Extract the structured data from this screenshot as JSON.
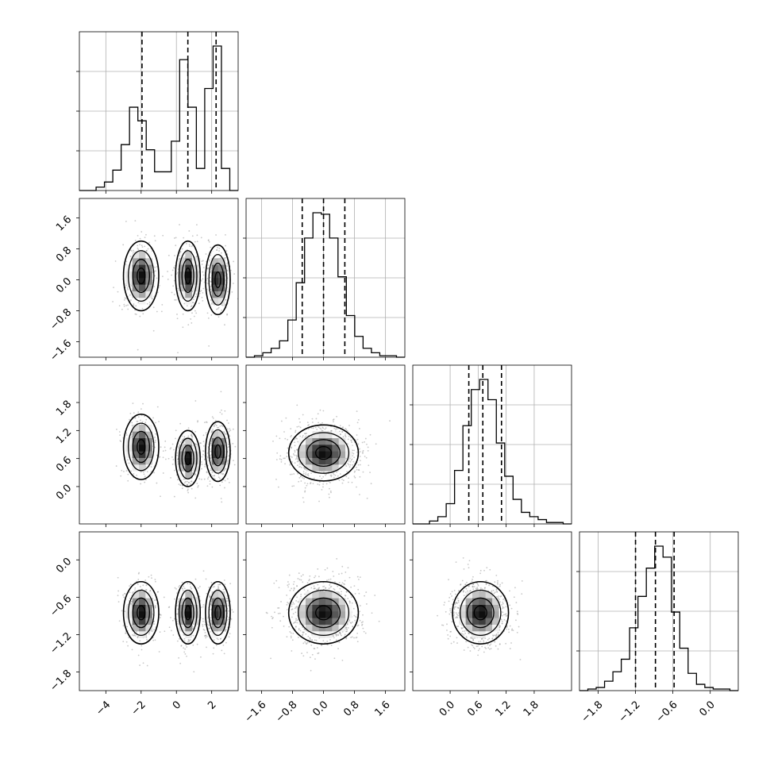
{
  "chart_data": {
    "type": "corner",
    "title": "",
    "grid": true,
    "colors": {
      "line": "#000000",
      "grid": "#b0b0b0",
      "scatter": "#9a9a9a",
      "background": "#ffffff"
    },
    "params": [
      {
        "range": [
          -5.5,
          3.5
        ],
        "xticks": [
          "-4",
          "-2",
          "0",
          "2"
        ],
        "quantiles": [
          -1.95,
          0.65,
          2.25
        ]
      },
      {
        "range": [
          -2.0,
          2.1
        ],
        "xticks": [
          "-1.6",
          "-0.8",
          "0.0",
          "0.8",
          "1.6"
        ],
        "quantiles": [
          -0.55,
          0.0,
          0.55
        ]
      },
      {
        "range": [
          -0.8,
          2.6
        ],
        "xticks": [
          "0.0",
          "0.6",
          "1.2",
          "1.8"
        ],
        "quantiles": [
          0.4,
          0.7,
          1.1
        ]
      },
      {
        "range": [
          -2.1,
          0.45
        ],
        "xticks": [
          "-1.8",
          "-1.2",
          "-0.6",
          "0.0"
        ],
        "quantiles": [
          -1.2,
          -0.88,
          -0.58
        ]
      }
    ],
    "yticks": [
      null,
      [
        "1.6",
        "0.8",
        "0.0",
        "-0.8",
        "-1.6"
      ],
      [
        "1.8",
        "1.2",
        "0.6",
        "0.0"
      ],
      [
        "0.0",
        "-0.6",
        "-1.2",
        "-1.8"
      ]
    ],
    "histograms": [
      {
        "bins": [
          -5.5,
          3.5
        ],
        "counts": [
          0,
          0,
          0.02,
          0.05,
          0.12,
          0.27,
          0.49,
          0.41,
          0.24,
          0.11,
          0.11,
          0.29,
          0.77,
          0.49,
          0.13,
          0.6,
          0.85,
          0.13,
          0
        ]
      },
      {
        "bins": [
          -2.0,
          2.1
        ],
        "counts": [
          0,
          0.01,
          0.03,
          0.06,
          0.11,
          0.25,
          0.5,
          0.8,
          0.97,
          0.96,
          0.8,
          0.54,
          0.28,
          0.14,
          0.06,
          0.03,
          0.01,
          0.01,
          0
        ]
      },
      {
        "bins": [
          -0.8,
          2.6
        ],
        "counts": [
          0,
          0,
          0.02,
          0.05,
          0.14,
          0.37,
          0.68,
          0.93,
          1.0,
          0.86,
          0.56,
          0.33,
          0.17,
          0.08,
          0.05,
          0.03,
          0.01,
          0.01,
          0
        ]
      },
      {
        "bins": [
          -2.1,
          0.45
        ],
        "counts": [
          0,
          0.01,
          0.02,
          0.06,
          0.12,
          0.2,
          0.4,
          0.6,
          0.78,
          0.92,
          0.85,
          0.5,
          0.27,
          0.11,
          0.04,
          0.02,
          0.01,
          0.01,
          0
        ]
      }
    ],
    "pairs": [
      {
        "row": 1,
        "col": 0,
        "modes": [
          {
            "x": -2.0,
            "y": 0.1,
            "sx": 0.5,
            "sy": 0.45
          },
          {
            "x": 0.65,
            "y": 0.1,
            "sx": 0.35,
            "sy": 0.45
          },
          {
            "x": 2.35,
            "y": 0.0,
            "sx": 0.35,
            "sy": 0.45
          }
        ]
      },
      {
        "row": 2,
        "col": 0,
        "modes": [
          {
            "x": -2.0,
            "y": 0.85,
            "sx": 0.5,
            "sy": 0.35
          },
          {
            "x": 0.65,
            "y": 0.6,
            "sx": 0.35,
            "sy": 0.3
          },
          {
            "x": 2.35,
            "y": 0.75,
            "sx": 0.35,
            "sy": 0.32
          }
        ]
      },
      {
        "row": 2,
        "col": 1,
        "modes": [
          {
            "x": 0.0,
            "y": 0.72,
            "sx": 0.45,
            "sy": 0.3
          }
        ]
      },
      {
        "row": 3,
        "col": 0,
        "modes": [
          {
            "x": -2.0,
            "y": -0.85,
            "sx": 0.5,
            "sy": 0.25
          },
          {
            "x": 0.65,
            "y": -0.85,
            "sx": 0.35,
            "sy": 0.25
          },
          {
            "x": 2.35,
            "y": -0.85,
            "sx": 0.35,
            "sy": 0.25
          }
        ]
      },
      {
        "row": 3,
        "col": 1,
        "modes": [
          {
            "x": 0.0,
            "y": -0.85,
            "sx": 0.45,
            "sy": 0.25
          }
        ]
      },
      {
        "row": 3,
        "col": 2,
        "modes": [
          {
            "x": 0.65,
            "y": -0.85,
            "sx": 0.3,
            "sy": 0.25
          }
        ]
      }
    ]
  }
}
